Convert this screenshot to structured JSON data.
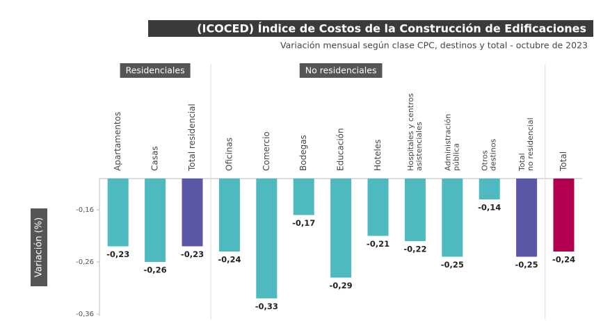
{
  "chart_data": {
    "type": "bar",
    "title": "(ICOCED) Índice de Costos de la Construcción de Edificaciones",
    "subtitle": "Variación mensual según clase CPC, destinos y total - octubre de 2023",
    "y_label": "Variación (%)",
    "groups": [
      {
        "name": "Residenciales",
        "from": 0,
        "to": 2
      },
      {
        "name": "No residenciales",
        "from": 3,
        "to": 11
      }
    ],
    "categories": [
      [
        "Apartamentos"
      ],
      [
        "Casas"
      ],
      [
        "Total residencial"
      ],
      [
        "Oficinas"
      ],
      [
        "Comercio"
      ],
      [
        "Bodegas"
      ],
      [
        "Educación"
      ],
      [
        "Hoteles"
      ],
      [
        "Hospitales y centros",
        "asistenciales"
      ],
      [
        "Administración",
        "pública"
      ],
      [
        "Otros",
        "destinos"
      ],
      [
        "Total",
        "no residencial"
      ],
      [
        "Total"
      ]
    ],
    "values": [
      -0.23,
      -0.26,
      -0.23,
      -0.24,
      -0.33,
      -0.17,
      -0.29,
      -0.21,
      -0.22,
      -0.25,
      -0.14,
      -0.25,
      -0.24
    ],
    "value_labels": [
      "-0,23",
      "-0,26",
      "-0,23",
      "-0,24",
      "-0,33",
      "-0,17",
      "-0,29",
      "-0,21",
      "-0,22",
      "-0,25",
      "-0,14",
      "-0,25",
      "-0,24"
    ],
    "colors": [
      "#4fb9c0",
      "#4fb9c0",
      "#5b56a6",
      "#4fb9c0",
      "#4fb9c0",
      "#4fb9c0",
      "#4fb9c0",
      "#4fb9c0",
      "#4fb9c0",
      "#4fb9c0",
      "#4fb9c0",
      "#5b56a6",
      "#b2004f"
    ],
    "ylim": [
      -0.364,
      -0.1
    ],
    "yticks": [
      {
        "value": -0.16,
        "label": "-0,16"
      },
      {
        "value": -0.26,
        "label": "-0,26"
      },
      {
        "value": -0.36,
        "label": "-0,36"
      }
    ],
    "grid": false
  }
}
